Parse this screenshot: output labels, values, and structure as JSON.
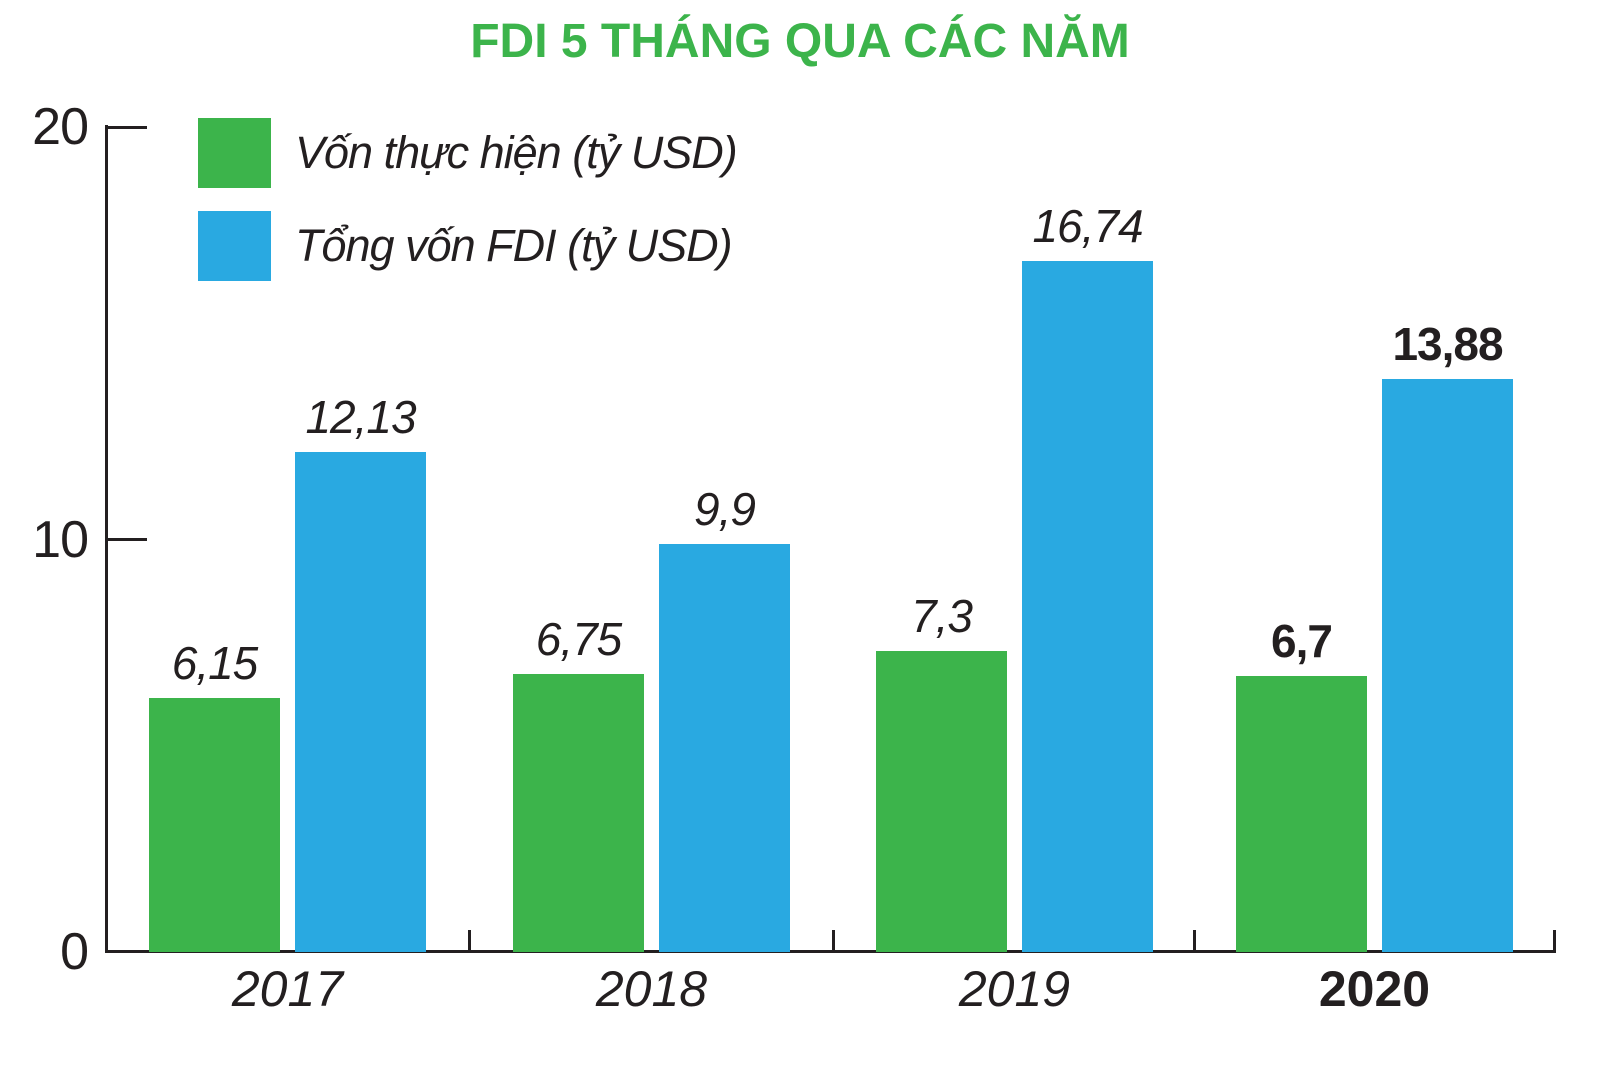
{
  "title": "FDI 5 THÁNG QUA CÁC NĂM",
  "colors": {
    "green": "#3CB44B",
    "blue": "#29A9E1",
    "axis": "#231F20",
    "title_green": "#3CB44B"
  },
  "legend": {
    "items": [
      {
        "label": "Vốn thực hiện (tỷ USD)",
        "color": "#3CB44B"
      },
      {
        "label": "Tổng vốn FDI (tỷ USD)",
        "color": "#29A9E1"
      }
    ]
  },
  "y_axis": {
    "tick_labels": [
      "20",
      "10",
      "0"
    ],
    "tick_values": [
      20,
      10,
      0
    ]
  },
  "chart_data": {
    "type": "bar",
    "title": "FDI 5 THÁNG QUA CÁC NĂM",
    "categories": [
      "2017",
      "2018",
      "2019",
      "2020"
    ],
    "series": [
      {
        "name": "Vốn thực hiện (tỷ USD)",
        "color": "#3CB44B",
        "values": [
          6.15,
          6.75,
          7.3,
          6.7
        ],
        "value_labels": [
          "6,15",
          "6,75",
          "7,3",
          "6,7"
        ]
      },
      {
        "name": "Tổng vốn FDI (tỷ USD)",
        "color": "#29A9E1",
        "values": [
          12.13,
          9.9,
          16.74,
          13.88
        ],
        "value_labels": [
          "12,13",
          "9,9",
          "16,74",
          "13,88"
        ]
      }
    ],
    "ylim": [
      0,
      20
    ],
    "yticks": [
      0,
      10,
      20
    ],
    "grid": false,
    "legend_position": "top-left",
    "emphasized_category": "2020"
  }
}
